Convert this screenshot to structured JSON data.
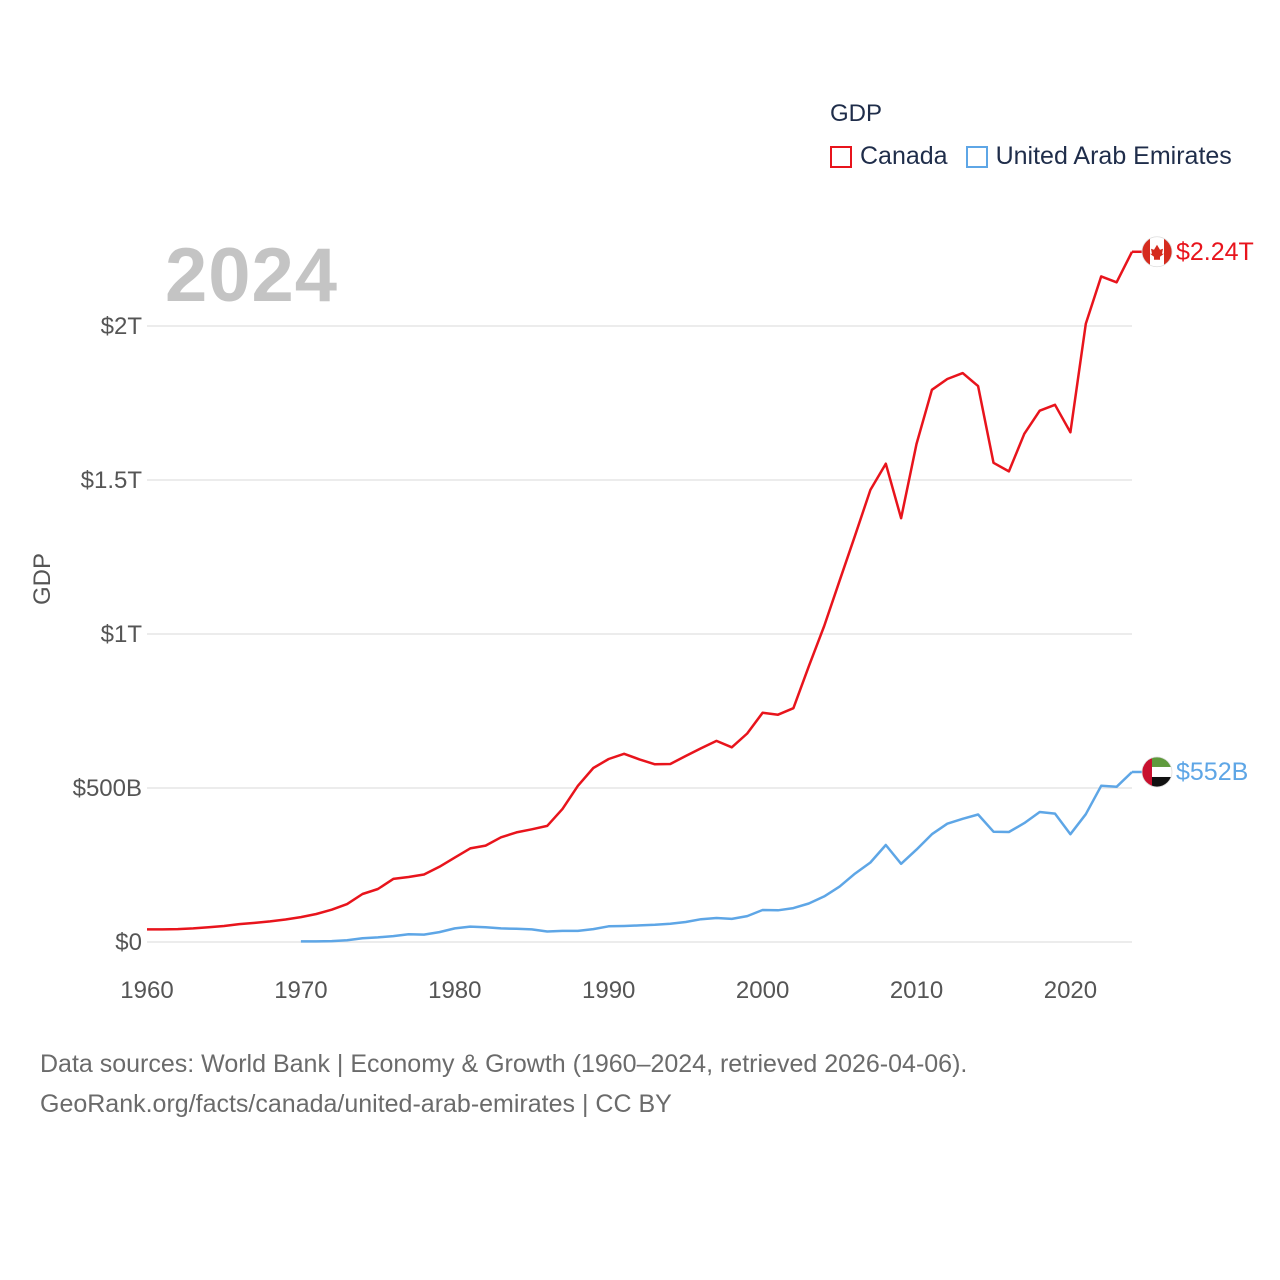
{
  "legend": {
    "title": "GDP",
    "items": [
      {
        "label": "Canada",
        "color": "#e8141c"
      },
      {
        "label": "United Arab Emirates",
        "color": "#5ea6e6"
      }
    ]
  },
  "watermark_year": "2024",
  "footer": {
    "line1": "Data sources: World Bank | Economy & Growth (1960–2024, retrieved 2026-04-06).",
    "line2": "GeoRank.org/facts/canada/united-arab-emirates | CC BY"
  },
  "chart_data": {
    "type": "line",
    "title": "",
    "xlabel": "",
    "ylabel": "GDP",
    "xlim": [
      1960,
      2024
    ],
    "ylim": [
      0,
      2.3
    ],
    "x_ticks": [
      1960,
      1970,
      1980,
      1990,
      2000,
      2010,
      2020
    ],
    "x_tick_labels": [
      "1960",
      "1970",
      "1980",
      "1990",
      "2000",
      "2010",
      "2020"
    ],
    "y_ticks": [
      0,
      0.5,
      1,
      1.5,
      2
    ],
    "y_tick_labels": [
      "$0",
      "$500B",
      "$1T",
      "$1.5T",
      "$2T"
    ],
    "grid": true,
    "series": [
      {
        "name": "Canada",
        "color": "#e8141c",
        "end_label": "$2.24T",
        "flag": "canada",
        "x": [
          1960,
          1961,
          1962,
          1963,
          1964,
          1965,
          1966,
          1967,
          1968,
          1969,
          1970,
          1971,
          1972,
          1973,
          1974,
          1975,
          1976,
          1977,
          1978,
          1979,
          1980,
          1981,
          1982,
          1983,
          1984,
          1985,
          1986,
          1987,
          1988,
          1989,
          1990,
          1991,
          1992,
          1993,
          1994,
          1995,
          1996,
          1997,
          1998,
          1999,
          2000,
          2001,
          2002,
          2003,
          2004,
          2005,
          2006,
          2007,
          2008,
          2009,
          2010,
          2011,
          2012,
          2013,
          2014,
          2015,
          2016,
          2017,
          2018,
          2019,
          2020,
          2021,
          2022,
          2023,
          2024
        ],
        "values": [
          0.041,
          0.041,
          0.042,
          0.044,
          0.048,
          0.052,
          0.058,
          0.062,
          0.067,
          0.073,
          0.081,
          0.091,
          0.105,
          0.123,
          0.156,
          0.172,
          0.205,
          0.211,
          0.219,
          0.244,
          0.274,
          0.304,
          0.313,
          0.34,
          0.356,
          0.366,
          0.377,
          0.432,
          0.507,
          0.565,
          0.594,
          0.611,
          0.593,
          0.577,
          0.578,
          0.604,
          0.629,
          0.653,
          0.632,
          0.677,
          0.744,
          0.738,
          0.759,
          0.895,
          1.026,
          1.173,
          1.319,
          1.468,
          1.553,
          1.376,
          1.617,
          1.793,
          1.828,
          1.847,
          1.805,
          1.556,
          1.528,
          1.65,
          1.725,
          1.744,
          1.655,
          2.007,
          2.161,
          2.142,
          2.241
        ]
      },
      {
        "name": "United Arab Emirates",
        "color": "#5ea6e6",
        "end_label": "$552B",
        "flag": "uae",
        "x": [
          1970,
          1971,
          1972,
          1973,
          1974,
          1975,
          1976,
          1977,
          1978,
          1979,
          1980,
          1981,
          1982,
          1983,
          1984,
          1985,
          1986,
          1987,
          1988,
          1989,
          1990,
          1991,
          1992,
          1993,
          1994,
          1995,
          1996,
          1997,
          1998,
          1999,
          2000,
          2001,
          2002,
          2003,
          2004,
          2005,
          2006,
          2007,
          2008,
          2009,
          2010,
          2011,
          2012,
          2013,
          2014,
          2015,
          2016,
          2017,
          2018,
          2019,
          2020,
          2021,
          2022,
          2023,
          2024
        ],
        "values": [
          0.002,
          0.002,
          0.003,
          0.006,
          0.012,
          0.015,
          0.019,
          0.025,
          0.024,
          0.032,
          0.044,
          0.05,
          0.048,
          0.044,
          0.043,
          0.041,
          0.034,
          0.036,
          0.036,
          0.042,
          0.051,
          0.052,
          0.054,
          0.056,
          0.059,
          0.065,
          0.074,
          0.078,
          0.075,
          0.084,
          0.104,
          0.103,
          0.11,
          0.125,
          0.148,
          0.18,
          0.222,
          0.258,
          0.315,
          0.254,
          0.3,
          0.35,
          0.384,
          0.4,
          0.414,
          0.358,
          0.357,
          0.386,
          0.422,
          0.417,
          0.35,
          0.415,
          0.507,
          0.504,
          0.552
        ]
      }
    ]
  }
}
